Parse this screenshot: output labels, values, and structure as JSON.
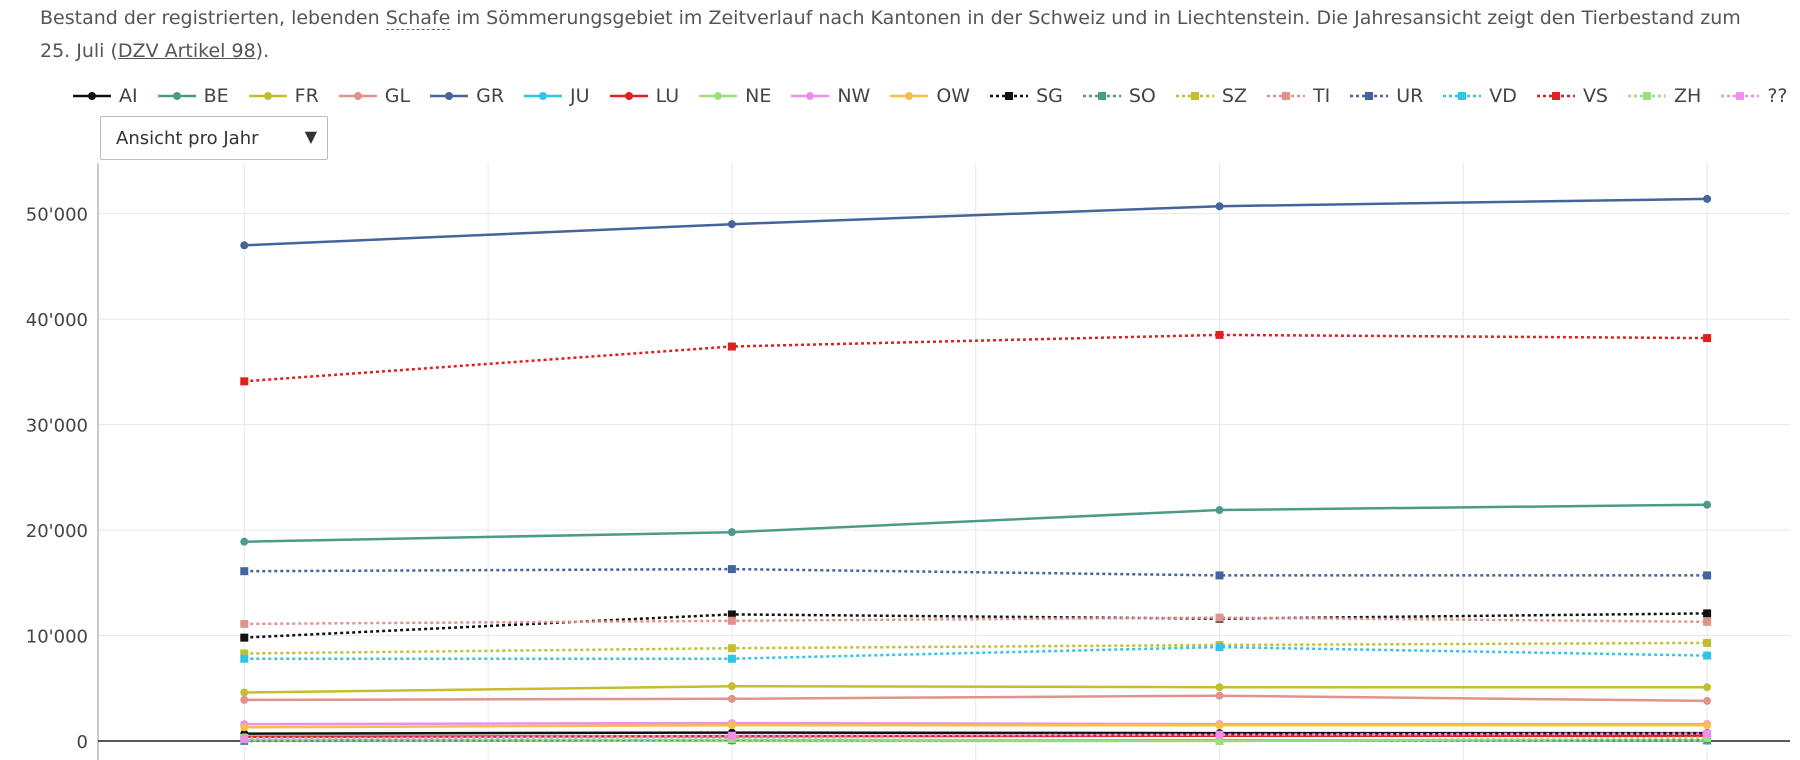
{
  "caption": {
    "before": "Bestand der registrierten, lebenden ",
    "glossary_term": "Schafe",
    "middle": " im Sömmerungsgebiet im Zeitverlauf nach Kantonen in der Schweiz und in Liechtenstein. Die Jahresansicht zeigt den Tierbestand zum 25. Juli (",
    "link": "DZV Artikel 98",
    "after": ")."
  },
  "view_select": {
    "selected": "Ansicht pro Jahr",
    "arrow": "▼"
  },
  "colors": {
    "axis": "#222222",
    "grid": "#e8e8e8",
    "tick_text": "#444444"
  },
  "chart_data": {
    "type": "line",
    "title": "",
    "xlabel": "",
    "ylabel": "",
    "x": [
      1,
      2,
      3,
      4
    ],
    "xlim": [
      0.7,
      4.17
    ],
    "ylim": [
      -1800,
      54800
    ],
    "yticks": [
      0,
      10000,
      20000,
      30000,
      40000,
      50000
    ],
    "ytick_labels": [
      "0",
      "10'000",
      "20'000",
      "30'000",
      "40'000",
      "50'000"
    ],
    "grid": true,
    "legend_position": "top",
    "series": [
      {
        "name": "AI",
        "color": "#111111",
        "dash": "solid",
        "marker": "circle",
        "values": [
          700,
          800,
          750,
          750
        ]
      },
      {
        "name": "BE",
        "color": "#4c9a8a",
        "dash": "solid",
        "marker": "circle",
        "values": [
          18900,
          19800,
          21900,
          22400
        ]
      },
      {
        "name": "FR",
        "color": "#c3be2e",
        "dash": "solid",
        "marker": "circle",
        "values": [
          4600,
          5200,
          5100,
          5100
        ]
      },
      {
        "name": "GL",
        "color": "#e0938a",
        "dash": "solid",
        "marker": "circle",
        "values": [
          3900,
          4000,
          4300,
          3800
        ]
      },
      {
        "name": "GR",
        "color": "#44649b",
        "dash": "solid",
        "marker": "circle",
        "values": [
          47000,
          49000,
          50700,
          51400
        ]
      },
      {
        "name": "JU",
        "color": "#2fc5e6",
        "dash": "solid",
        "marker": "circle",
        "values": [
          50,
          60,
          60,
          50
        ]
      },
      {
        "name": "LU",
        "color": "#e01f1f",
        "dash": "solid",
        "marker": "circle",
        "values": [
          400,
          450,
          500,
          500
        ]
      },
      {
        "name": "NE",
        "color": "#9be07d",
        "dash": "solid",
        "marker": "circle",
        "values": [
          100,
          0,
          0,
          80
        ]
      },
      {
        "name": "NW",
        "color": "#f08ef0",
        "dash": "solid",
        "marker": "circle",
        "values": [
          1600,
          1700,
          1600,
          1600
        ]
      },
      {
        "name": "OW",
        "color": "#f4c04a",
        "dash": "solid",
        "marker": "circle",
        "values": [
          1300,
          1500,
          1500,
          1500
        ]
      },
      {
        "name": "SG",
        "color": "#111111",
        "dash": "dotted",
        "marker": "square",
        "values": [
          9800,
          12000,
          11600,
          12100
        ]
      },
      {
        "name": "SO",
        "color": "#4c9a8a",
        "dash": "dotted",
        "marker": "square",
        "values": [
          0,
          100,
          50,
          50
        ]
      },
      {
        "name": "SZ",
        "color": "#c3be2e",
        "dash": "dotted",
        "marker": "square",
        "values": [
          8300,
          8800,
          9100,
          9300
        ]
      },
      {
        "name": "TI",
        "color": "#e0938a",
        "dash": "dotted",
        "marker": "square",
        "values": [
          11100,
          11400,
          11700,
          11300
        ]
      },
      {
        "name": "UR",
        "color": "#44649b",
        "dash": "dotted",
        "marker": "square",
        "values": [
          16100,
          16300,
          15700,
          15700
        ]
      },
      {
        "name": "VD",
        "color": "#2fc5e6",
        "dash": "dotted",
        "marker": "square",
        "values": [
          7800,
          7800,
          8900,
          8100
        ]
      },
      {
        "name": "VS",
        "color": "#e01f1f",
        "dash": "dotted",
        "marker": "square",
        "values": [
          34100,
          37400,
          38500,
          38200
        ]
      },
      {
        "name": "ZH",
        "color": "#9be07d",
        "dash": "dotted",
        "marker": "square",
        "values": [
          300,
          200,
          0,
          300
        ]
      },
      {
        "name": "??",
        "color": "#f08ef0",
        "dash": "dotted",
        "marker": "square",
        "values": [
          200,
          500,
          600,
          700
        ]
      }
    ]
  }
}
